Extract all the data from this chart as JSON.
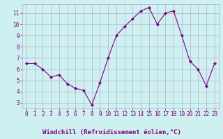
{
  "x": [
    0,
    1,
    2,
    3,
    4,
    5,
    6,
    7,
    8,
    9,
    10,
    11,
    12,
    13,
    14,
    15,
    16,
    17,
    18,
    19,
    20,
    21,
    22,
    23
  ],
  "y": [
    6.5,
    6.5,
    6.0,
    5.3,
    5.5,
    4.7,
    4.3,
    4.1,
    2.8,
    4.8,
    7.0,
    9.0,
    9.8,
    10.5,
    11.2,
    11.5,
    10.0,
    11.0,
    11.2,
    9.0,
    6.7,
    6.0,
    4.5,
    6.5
  ],
  "line_color": "#800080",
  "marker": "D",
  "marker_size": 2.0,
  "linewidth": 0.8,
  "xlabel": "Windchill (Refroidissement éolien,°C)",
  "xlabel_fontsize": 6.5,
  "bg_color": "#cff0f0",
  "bottom_bar_color": "#800080",
  "grid_color": "#b0b0cc",
  "tick_color": "#800080",
  "label_color": "#800080",
  "ylim": [
    2.5,
    11.8
  ],
  "xlim": [
    -0.5,
    23.5
  ],
  "yticks": [
    3,
    4,
    5,
    6,
    7,
    8,
    9,
    10,
    11
  ],
  "xticks": [
    0,
    1,
    2,
    3,
    4,
    5,
    6,
    7,
    8,
    9,
    10,
    11,
    12,
    13,
    14,
    15,
    16,
    17,
    18,
    19,
    20,
    21,
    22,
    23
  ],
  "tick_fontsize": 5.5,
  "bottom_bar_height": 0.12
}
